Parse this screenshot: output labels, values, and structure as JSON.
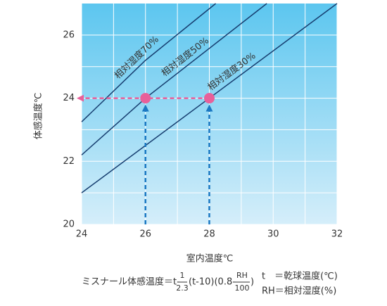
{
  "chart_data": {
    "type": "line",
    "xlabel": "室内温度℃",
    "ylabel": "体感温度℃",
    "xlim": [
      24,
      32
    ],
    "ylim": [
      20,
      27
    ],
    "xticks": [
      24,
      26,
      28,
      30,
      32
    ],
    "yticks": [
      20,
      22,
      24,
      26
    ],
    "grid_x": [
      25,
      27,
      29,
      31
    ],
    "grid_y": [
      21,
      23,
      25
    ],
    "series": [
      {
        "name": "相対湿度70%",
        "color": "#173e70",
        "x": [
          24,
          26,
          28.2
        ],
        "values": [
          23.25,
          25.2,
          27
        ]
      },
      {
        "name": "相対湿度50%",
        "color": "#173e70",
        "x": [
          24,
          26,
          29.8
        ],
        "values": [
          22.2,
          24,
          27
        ]
      },
      {
        "name": "相対湿度30%",
        "color": "#173e70",
        "x": [
          24,
          28,
          32
        ],
        "values": [
          21,
          24,
          27
        ]
      }
    ],
    "markers": {
      "color": "#e8609a",
      "arrow_color": "#1a78c2",
      "x": [
        26,
        28
      ],
      "values": [
        24,
        24
      ]
    },
    "formula": {
      "lead": "ミスナール体感温度＝t-",
      "num1": "1",
      "den1": "2.3",
      "mid": "(t-10)(0.8-",
      "num2": "RH",
      "den2": "100",
      "tail": ")",
      "notes": [
        "t　＝乾球温度(℃)",
        "RH＝相対湿度(%)"
      ]
    }
  }
}
